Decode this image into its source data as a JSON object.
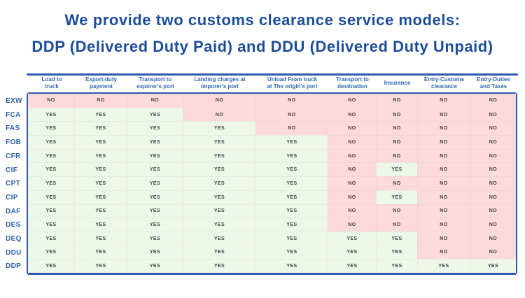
{
  "title": {
    "line1": "We provide two customs clearance service models:",
    "line2": "DDP (Delivered Duty Paid) and DDU (Delivered Duty Unpaid)"
  },
  "colors": {
    "title_blue": "#1d4e9b",
    "line_blue": "#2d5aa9",
    "header_blue": "#2f66ae",
    "row_label_blue": "#2c61ab",
    "yes_bg": "#eef5e9",
    "no_bg": "#fbd9dc"
  },
  "chart_data": {
    "type": "table",
    "title": "We provide two customs clearance service models: DDP (Delivered Duty Paid) and DDU (Delivered Duty Unpaid)",
    "columns": [
      "Load to truck",
      "Export-duty payment",
      "Transport to exporer's port",
      "Landing charges at imporer's port",
      "Unload From truck at The origin's port",
      "Transport to destination",
      "Insurance",
      "Entry-Customs clearance",
      "Entry-Duties and Taxes"
    ],
    "rows": [
      {
        "label": "EXW",
        "cells": [
          "NO",
          "NO",
          "NO",
          "NO",
          "NO",
          "NO",
          "NO",
          "NO",
          "NO"
        ]
      },
      {
        "label": "FCA",
        "cells": [
          "YES",
          "YES",
          "YES",
          "NO",
          "NO",
          "NO",
          "NO",
          "NO",
          "NO"
        ]
      },
      {
        "label": "FAS",
        "cells": [
          "YES",
          "YES",
          "YES",
          "YES",
          "NO",
          "NO",
          "NO",
          "NO",
          "NO"
        ]
      },
      {
        "label": "FOB",
        "cells": [
          "YES",
          "YES",
          "YES",
          "YES",
          "YES",
          "NO",
          "NO",
          "NO",
          "NO"
        ]
      },
      {
        "label": "CFR",
        "cells": [
          "YES",
          "YES",
          "YES",
          "YES",
          "YES",
          "NO",
          "NO",
          "NO",
          "NO"
        ]
      },
      {
        "label": "CIF",
        "cells": [
          "YES",
          "YES",
          "YES",
          "YES",
          "YES",
          "NO",
          "YES",
          "NO",
          "NO"
        ]
      },
      {
        "label": "CPT",
        "cells": [
          "YES",
          "YES",
          "YES",
          "YES",
          "YES",
          "NO",
          "NO",
          "NO",
          "NO"
        ]
      },
      {
        "label": "CIP",
        "cells": [
          "YES",
          "YES",
          "YES",
          "YES",
          "YES",
          "NO",
          "YES",
          "NO",
          "NO"
        ]
      },
      {
        "label": "DAF",
        "cells": [
          "YES",
          "YES",
          "YES",
          "YES",
          "YES",
          "NO",
          "NO",
          "NO",
          "NO"
        ]
      },
      {
        "label": "DES",
        "cells": [
          "YES",
          "YES",
          "YES",
          "YES",
          "YES",
          "NO",
          "NO",
          "NO",
          "NO"
        ]
      },
      {
        "label": "DEQ",
        "cells": [
          "YES",
          "YES",
          "YES",
          "YES",
          "YES",
          "YES",
          "YES",
          "NO",
          "NO"
        ]
      },
      {
        "label": "DDU",
        "cells": [
          "YES",
          "YES",
          "YES",
          "YES",
          "YES",
          "YES",
          "YES",
          "NO",
          "NO"
        ]
      },
      {
        "label": "DDP",
        "cells": [
          "YES",
          "YES",
          "YES",
          "YES",
          "YES",
          "YES",
          "YES",
          "YES",
          "YES"
        ]
      }
    ]
  }
}
